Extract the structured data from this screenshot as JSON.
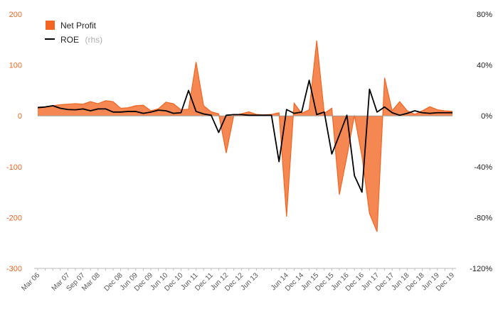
{
  "chart_data": {
    "type": "area",
    "x": [
      "Mar 06",
      "Jun 06",
      "Sep 06",
      "Dec 06",
      "Mar 07",
      "Jun 07",
      "Sep 07",
      "Dec 07",
      "Mar 08",
      "Jun 08",
      "Sep 08",
      "Dec 08",
      "Mar 09",
      "Jun 09",
      "Sep 09",
      "Dec 09",
      "Mar 10",
      "Jun 10",
      "Sep 10",
      "Dec 10",
      "Mar 11",
      "Jun 11",
      "Sep 11",
      "Dec 11",
      "Mar 12",
      "Jun 12",
      "Sep 12",
      "Dec 12",
      "Mar 13",
      "Jun 13",
      "Sep 13",
      "Dec 13",
      "Mar 14",
      "Jun 14",
      "Sep 14",
      "Dec 14",
      "Mar 15",
      "Jun 15",
      "Sep 15",
      "Dec 15",
      "Mar 16",
      "Jun 16",
      "Sep 16",
      "Dec 16",
      "Mar 17",
      "Jun 17",
      "Sep 17",
      "Dec 17",
      "Mar 18",
      "Jun 18",
      "Sep 18",
      "Dec 18",
      "Mar 19",
      "Jun 19",
      "Sep 19",
      "Dec 19"
    ],
    "xtick_labels": [
      "Mar 06",
      "Mar 07",
      "Sep 07",
      "Mar 08",
      "Dec 08",
      "Jun 09",
      "Dec 09",
      "Jun 10",
      "Dec 10",
      "Jun 11",
      "Dec 11",
      "Jun 12",
      "Dec 12",
      "Jun 13",
      "Jun 14",
      "Dec 14",
      "Jun 15",
      "Dec 15",
      "Jun 16",
      "Dec 16",
      "Jun 17",
      "Dec 17",
      "Jun 18",
      "Dec 18",
      "Jun 19",
      "Dec 19"
    ],
    "series": [
      {
        "name": "Net Profit",
        "kind": "area",
        "axis": "left",
        "color": "#f26522",
        "values": [
          17,
          18,
          20,
          22,
          23,
          24,
          23,
          28,
          24,
          30,
          28,
          15,
          16,
          20,
          21,
          10,
          14,
          27,
          24,
          12,
          13,
          106,
          20,
          8,
          4,
          -73,
          1,
          4,
          8,
          3,
          2,
          3,
          6,
          -198,
          25,
          5,
          12,
          148,
          5,
          15,
          -155,
          -80,
          1,
          -80,
          -192,
          -228,
          75,
          10,
          28,
          10,
          3,
          10,
          18,
          12,
          10,
          9
        ]
      },
      {
        "name": "ROE",
        "name_suffix": "(rhs)",
        "kind": "line",
        "axis": "right",
        "color": "#000000",
        "values": [
          6.5,
          7,
          8,
          6,
          5,
          4.8,
          5.5,
          4,
          5.5,
          5.5,
          3,
          3,
          3.5,
          3.5,
          2,
          3,
          4.5,
          4,
          2,
          2.5,
          20,
          3.5,
          1.5,
          0.5,
          -13,
          0.5,
          1,
          1,
          0.5,
          0.5,
          0.5,
          0.5,
          -36,
          5,
          2,
          3,
          28,
          1,
          3,
          -30,
          -15,
          0.5,
          -47,
          -60,
          21,
          3,
          7,
          2.5,
          0.5,
          2,
          4,
          2.5,
          2,
          2.5,
          2.5,
          2.5
        ]
      }
    ],
    "yaxis_left": {
      "ticks": [
        200,
        100,
        0,
        -100,
        -200,
        -300
      ],
      "ylim": [
        -300,
        200
      ]
    },
    "yaxis_right": {
      "ticks": [
        "80%",
        "40%",
        "0%",
        "-40%",
        "-80%",
        "-120%"
      ],
      "ylim": [
        -120,
        80
      ]
    },
    "legend": {
      "placement": "top-left",
      "entries": [
        {
          "label": "Net Profit",
          "suffix": ""
        },
        {
          "label": "ROE",
          "suffix": "(rhs)"
        }
      ]
    },
    "grid": false,
    "title": "",
    "xlabel": "",
    "ylabel": ""
  }
}
